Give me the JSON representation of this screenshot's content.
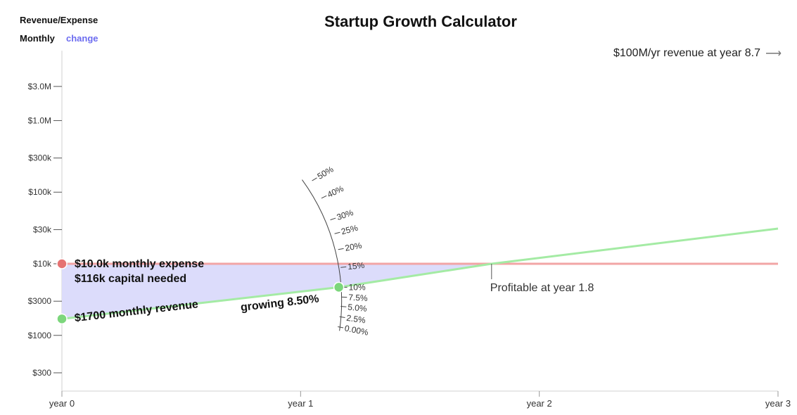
{
  "header": {
    "mode_title": "Revenue/Expense",
    "mode_value": "Monthly",
    "mode_change": "change",
    "title": "Startup Growth Calculator",
    "milestone": "$100M/yr revenue at year 8.7",
    "milestone_arrow_icon": "arrow-right-icon"
  },
  "chart_data": {
    "type": "line",
    "title": "Startup Growth Calculator",
    "yscale": "log",
    "y_ticks": [
      {
        "value": 300,
        "label": "$300"
      },
      {
        "value": 1000,
        "label": "$1000"
      },
      {
        "value": 3000,
        "label": "$3000"
      },
      {
        "value": 10000,
        "label": "$10k"
      },
      {
        "value": 30000,
        "label": "$30k"
      },
      {
        "value": 100000,
        "label": "$100k"
      },
      {
        "value": 300000,
        "label": "$300k"
      },
      {
        "value": 1000000,
        "label": "$1.0M"
      },
      {
        "value": 3000000,
        "label": "$3.0M"
      }
    ],
    "x_ticks": [
      {
        "value": 0,
        "label": "year 0"
      },
      {
        "value": 1,
        "label": "year 1"
      },
      {
        "value": 2,
        "label": "year 2"
      },
      {
        "value": 3,
        "label": "year 3"
      }
    ],
    "xlim": [
      0,
      3
    ],
    "series": [
      {
        "name": "monthly expense",
        "color": "#f2a5a5",
        "x": [
          0,
          3
        ],
        "y": [
          10000,
          10000
        ]
      },
      {
        "name": "monthly revenue",
        "color": "#a4eba4",
        "x": [
          0,
          1.16,
          1.8,
          3
        ],
        "y": [
          1700,
          4700,
          10000,
          31000
        ]
      }
    ],
    "capital_fill_color": "#dcdcfb",
    "handles": [
      {
        "name": "expense-handle",
        "x": 0,
        "y": 10000,
        "color": "#e57373"
      },
      {
        "name": "revenue-handle",
        "x": 0,
        "y": 1700,
        "color": "#7cd67c"
      },
      {
        "name": "growth-handle",
        "x": 1.16,
        "y": 4700,
        "color": "#7cd67c"
      }
    ],
    "labels": {
      "expense": "$10.0k monthly expense",
      "capital": "$116k capital needed",
      "revenue": "$1700 monthly revenue",
      "growth": "growing 8.50%",
      "profitable": "Profitable at year 1.8"
    },
    "profitable_year": 1.8,
    "growth_rate_pct": 8.5,
    "growth_dial_ticks": [
      "0.00%",
      "2.5%",
      "5.0%",
      "7.5%",
      "10%",
      "15%",
      "20%",
      "25%",
      "30%",
      "40%",
      "50%"
    ]
  }
}
